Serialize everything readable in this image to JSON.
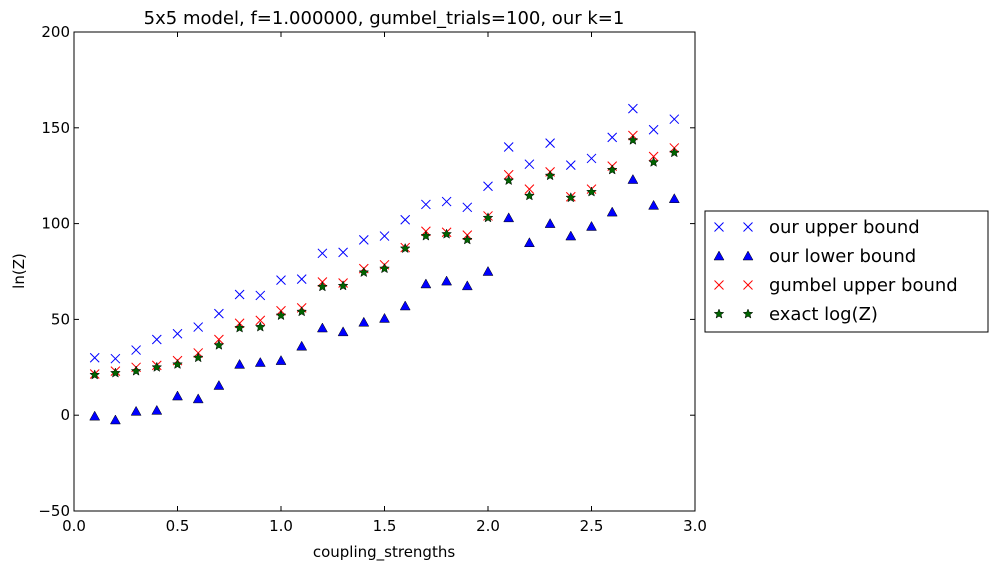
{
  "chart_data": {
    "type": "scatter",
    "title": "5x5 model, f=1.000000, gumbel_trials=100, our k=1",
    "xlabel": "coupling_strengths",
    "ylabel": "ln(Z)",
    "xlim": [
      0.0,
      3.0
    ],
    "ylim": [
      -50,
      200
    ],
    "xticks": [
      0.0,
      0.5,
      1.0,
      1.5,
      2.0,
      2.5,
      3.0
    ],
    "xtick_labels": [
      "0.0",
      "0.5",
      "1.0",
      "1.5",
      "2.0",
      "2.5",
      "3.0"
    ],
    "yticks": [
      -50,
      0,
      50,
      100,
      150,
      200
    ],
    "ytick_labels": [
      "−50",
      "0",
      "50",
      "100",
      "150",
      "200"
    ],
    "grid": false,
    "legend_position": "outside-right",
    "x": [
      0.1,
      0.2,
      0.3,
      0.4,
      0.5,
      0.6,
      0.7,
      0.8,
      0.9,
      1.0,
      1.1,
      1.2,
      1.3,
      1.4,
      1.5,
      1.6,
      1.7,
      1.8,
      1.9,
      2.0,
      2.1,
      2.2,
      2.3,
      2.4,
      2.5,
      2.6,
      2.7,
      2.8,
      2.9
    ],
    "series": [
      {
        "name": "our upper bound",
        "marker": "x",
        "color": "#0000ff",
        "values": [
          30,
          29.5,
          34,
          39.5,
          42.5,
          46,
          53,
          63,
          62.5,
          70.5,
          71,
          84.5,
          85,
          91.5,
          93.5,
          102,
          110,
          111.5,
          108.5,
          119.5,
          140,
          131,
          142,
          130.5,
          134,
          145,
          160,
          149,
          154.5
        ]
      },
      {
        "name": "our lower bound",
        "marker": "triangle",
        "color": "#0000ff",
        "values": [
          -0.5,
          -2.5,
          2,
          2.5,
          10,
          8.5,
          15.5,
          26.5,
          27.5,
          28.5,
          36,
          45.5,
          43.5,
          48.5,
          50.5,
          57,
          68.5,
          70,
          67.5,
          75,
          103,
          90,
          100,
          93.5,
          98.5,
          106,
          123,
          109.5,
          113
        ]
      },
      {
        "name": "gumbel upper bound",
        "marker": "x",
        "color": "#ff0000",
        "values": [
          21.5,
          23,
          25,
          26,
          28.5,
          32.5,
          39.5,
          48,
          49.5,
          54.5,
          56,
          69.5,
          69,
          76.5,
          78.5,
          87.5,
          96,
          95.5,
          94,
          104,
          125.5,
          118,
          127,
          114,
          118,
          130,
          146,
          135,
          139.5
        ]
      },
      {
        "name": "exact log(Z)",
        "marker": "star",
        "color": "#006400",
        "values": [
          21,
          22,
          23,
          25,
          26.5,
          30,
          36.5,
          45.5,
          46,
          52,
          54,
          67,
          67.5,
          74.5,
          76.5,
          87,
          93.5,
          94.5,
          91.5,
          103,
          122.5,
          114.5,
          125,
          113.5,
          116.5,
          128,
          143.5,
          132,
          137
        ]
      }
    ]
  }
}
